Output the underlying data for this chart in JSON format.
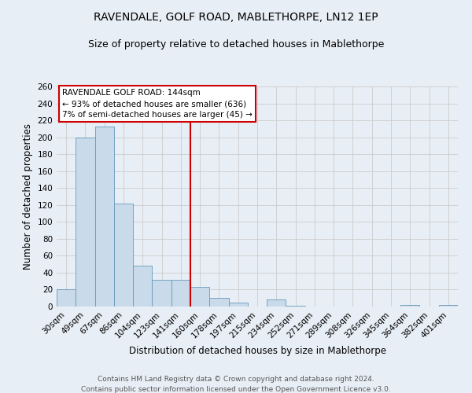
{
  "title": "RAVENDALE, GOLF ROAD, MABLETHORPE, LN12 1EP",
  "subtitle": "Size of property relative to detached houses in Mablethorpe",
  "xlabel": "Distribution of detached houses by size in Mablethorpe",
  "ylabel": "Number of detached properties",
  "footer_line1": "Contains HM Land Registry data © Crown copyright and database right 2024.",
  "footer_line2": "Contains public sector information licensed under the Open Government Licence v3.0.",
  "bar_labels": [
    "30sqm",
    "49sqm",
    "67sqm",
    "86sqm",
    "104sqm",
    "123sqm",
    "141sqm",
    "160sqm",
    "178sqm",
    "197sqm",
    "215sqm",
    "234sqm",
    "252sqm",
    "271sqm",
    "289sqm",
    "308sqm",
    "326sqm",
    "345sqm",
    "364sqm",
    "382sqm",
    "401sqm"
  ],
  "bar_values": [
    20,
    200,
    213,
    122,
    48,
    32,
    32,
    23,
    10,
    5,
    0,
    8,
    1,
    0,
    0,
    0,
    0,
    0,
    2,
    0,
    2
  ],
  "bar_color": "#c9daea",
  "bar_edge_color": "#6699bb",
  "vline_index": 7,
  "vline_color": "#cc0000",
  "annotation_title": "RAVENDALE GOLF ROAD: 144sqm",
  "annotation_line1": "← 93% of detached houses are smaller (636)",
  "annotation_line2": "7% of semi-detached houses are larger (45) →",
  "annotation_box_color": "white",
  "annotation_box_edge_color": "#cc0000",
  "ylim": [
    0,
    260
  ],
  "yticks": [
    0,
    20,
    40,
    60,
    80,
    100,
    120,
    140,
    160,
    180,
    200,
    220,
    240,
    260
  ],
  "grid_color": "#cccccc",
  "bg_color": "#e8eef5",
  "title_fontsize": 10,
  "subtitle_fontsize": 9,
  "xlabel_fontsize": 8.5,
  "ylabel_fontsize": 8.5,
  "tick_fontsize": 7.5,
  "footer_fontsize": 6.5
}
